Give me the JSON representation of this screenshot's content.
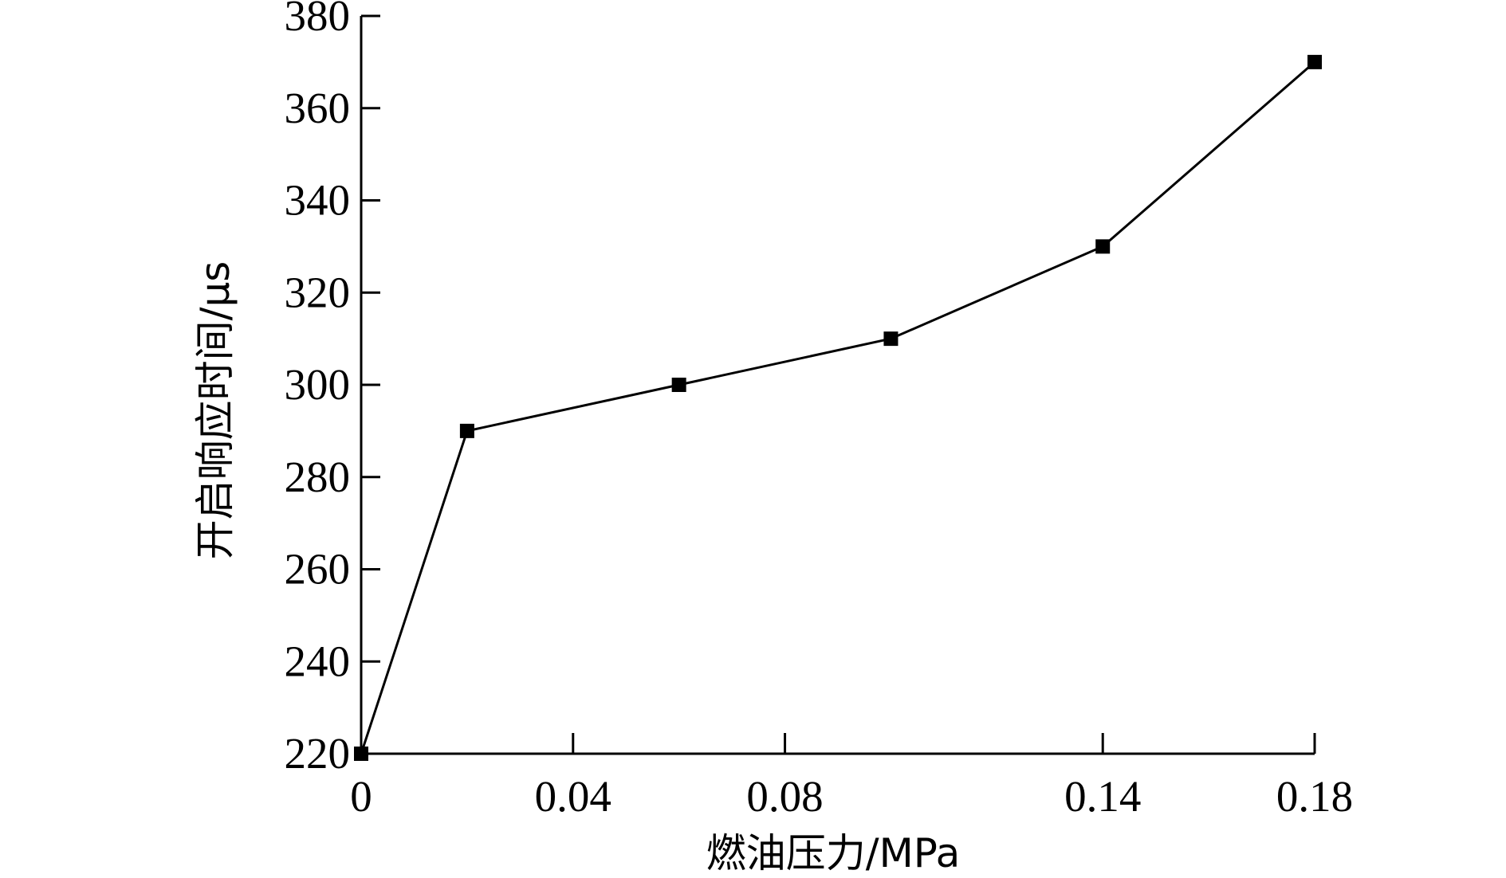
{
  "chart_data": {
    "type": "line",
    "xlabel": "燃油压力/MPa",
    "ylabel": "开启响应时间/μs",
    "xlim": [
      0,
      0.18
    ],
    "ylim": [
      220,
      380
    ],
    "xticks": [
      {
        "value": 0,
        "label": "0"
      },
      {
        "value": 0.04,
        "label": "0.04"
      },
      {
        "value": 0.08,
        "label": "0.08"
      },
      {
        "value": 0.14,
        "label": "0.14"
      },
      {
        "value": 0.18,
        "label": "0.18"
      }
    ],
    "yticks": [
      {
        "value": 220,
        "label": "220"
      },
      {
        "value": 240,
        "label": "240"
      },
      {
        "value": 260,
        "label": "260"
      },
      {
        "value": 280,
        "label": "280"
      },
      {
        "value": 300,
        "label": "300"
      },
      {
        "value": 320,
        "label": "320"
      },
      {
        "value": 340,
        "label": "340"
      },
      {
        "value": 360,
        "label": "360"
      },
      {
        "value": 380,
        "label": "380"
      }
    ],
    "grid": false,
    "series": [
      {
        "marker": "square",
        "color": "#000000",
        "points": [
          {
            "x": 0,
            "y": 220
          },
          {
            "x": 0.02,
            "y": 290
          },
          {
            "x": 0.06,
            "y": 300
          },
          {
            "x": 0.1,
            "y": 310
          },
          {
            "x": 0.14,
            "y": 330
          },
          {
            "x": 0.18,
            "y": 370
          }
        ]
      }
    ]
  }
}
